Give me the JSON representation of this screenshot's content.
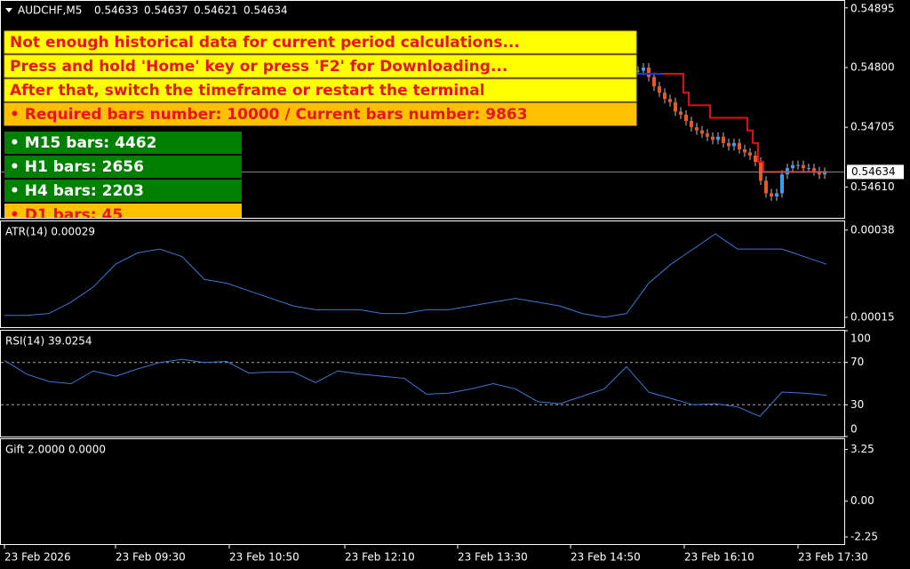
{
  "messages": [
    "Not enough historical data for current period calculations...",
    "Press and hold 'Home' key or press 'F2' for Downloading...",
    "After that, switch the timeframe or restart the terminal",
    "• Required bars number: 10000 / Current bars number: 9863"
  ],
  "bars": [
    "• M15 bars: 4462",
    "• H1 bars: 2656",
    "• H4 bars: 2203",
    "• D1 bars: 45"
  ],
  "time_axis": [
    "23 Feb 2026",
    "23 Feb 09:30",
    "23 Feb 10:50",
    "23 Feb 12:10",
    "23 Feb 13:30",
    "23 Feb 14:50",
    "23 Feb 16:10",
    "23 Feb 17:30"
  ],
  "chart_data": [
    {
      "type": "candlestick",
      "title": "AUDCHF,M5",
      "ohlc": [
        0.54633,
        0.54637,
        0.54621,
        0.54634
      ],
      "ylim": [
        0.54561,
        0.54906
      ],
      "yticks": [
        0.54895,
        {
          "value": 0.548,
          "label": "0.54800"
        },
        0.54705,
        {
          "value": 0.5461,
          "label": "0.54610"
        }
      ],
      "last_price": 0.54634,
      "up_color": "#3a9ee8",
      "down_color": "#e8562a",
      "closes": [
        0.54795,
        0.548,
        0.54785,
        0.5477,
        0.5476,
        0.5475,
        0.54745,
        0.5473,
        0.54725,
        0.54715,
        0.54705,
        0.547,
        0.54695,
        0.5469,
        0.54685,
        0.5469,
        0.5468,
        0.54675,
        0.5468,
        0.5467,
        0.54665,
        0.5466,
        0.5465,
        0.5462,
        0.546,
        0.54595,
        0.546,
        0.5463,
        0.5464,
        0.54645,
        0.54645,
        0.5464,
        0.5464,
        0.54635,
        0.5463,
        0.54634
      ],
      "series": [
        {
          "color": "#2030ff",
          "values": [
            0.5479,
            0.5479,
            0.5479,
            0.5479,
            0.5479,
            0.5479,
            null,
            null,
            null,
            null,
            null,
            null,
            null,
            null,
            null,
            null,
            null,
            null,
            null,
            null,
            null,
            null,
            null,
            null,
            null,
            null,
            null,
            null,
            null,
            null,
            null,
            null,
            null,
            null,
            null,
            null
          ]
        },
        {
          "color": "#e01010",
          "values": [
            null,
            null,
            null,
            null,
            null,
            0.5479,
            0.5479,
            0.5479,
            0.5479,
            0.5476,
            0.5474,
            0.5474,
            0.5474,
            0.5474,
            0.5472,
            0.5472,
            0.5472,
            0.5472,
            0.5472,
            0.5472,
            0.5472,
            0.547,
            0.5468,
            0.5465,
            0.54634,
            0.54634,
            0.54634,
            0.54634,
            0.54634,
            0.54634,
            0.54634,
            0.54634,
            0.54634,
            0.54634,
            0.54634,
            0.54634
          ]
        }
      ]
    },
    {
      "type": "line",
      "title": "ATR(14) 0.00029",
      "color": "#3a78d8",
      "ylim": [
        0.000124,
        0.000403
      ],
      "yticks": [
        0.00038,
        0.00015
      ],
      "values": [
        0.000155,
        0.000155,
        0.00016,
        0.00019,
        0.00023,
        0.00029,
        0.00032,
        0.00033,
        0.00031,
        0.00025,
        0.00024,
        0.00022,
        0.0002,
        0.00018,
        0.00017,
        0.00017,
        0.00017,
        0.00016,
        0.00016,
        0.00017,
        0.00017,
        0.00018,
        0.00019,
        0.0002,
        0.00019,
        0.00018,
        0.00016,
        0.00015,
        0.00016,
        0.00024,
        0.00029,
        0.00033,
        0.00037,
        0.00033,
        0.00033,
        0.00033,
        0.00031,
        0.00029
      ]
    },
    {
      "type": "line",
      "title": "RSI(14) 39.0254",
      "color": "#3a78d8",
      "ylim": [
        0,
        100
      ],
      "yticks": [
        100,
        70,
        30,
        0
      ],
      "levels": [
        70,
        30
      ],
      "values": [
        72,
        59,
        52,
        50,
        62,
        57,
        64,
        70,
        73,
        70,
        71,
        60,
        61,
        61,
        51,
        62,
        59,
        57,
        55,
        40,
        41,
        45,
        50,
        45,
        33,
        31,
        38,
        45,
        66,
        42,
        36,
        30,
        31,
        28,
        19,
        42,
        41,
        39
      ]
    },
    {
      "type": "line",
      "title": "Gift 2.0000 0.0000",
      "ylim": [
        -2.7,
        3.9
      ],
      "yticks": [
        3.25,
        {
          "value": 0,
          "label": "0.00"
        },
        -2.25
      ],
      "values": []
    }
  ]
}
